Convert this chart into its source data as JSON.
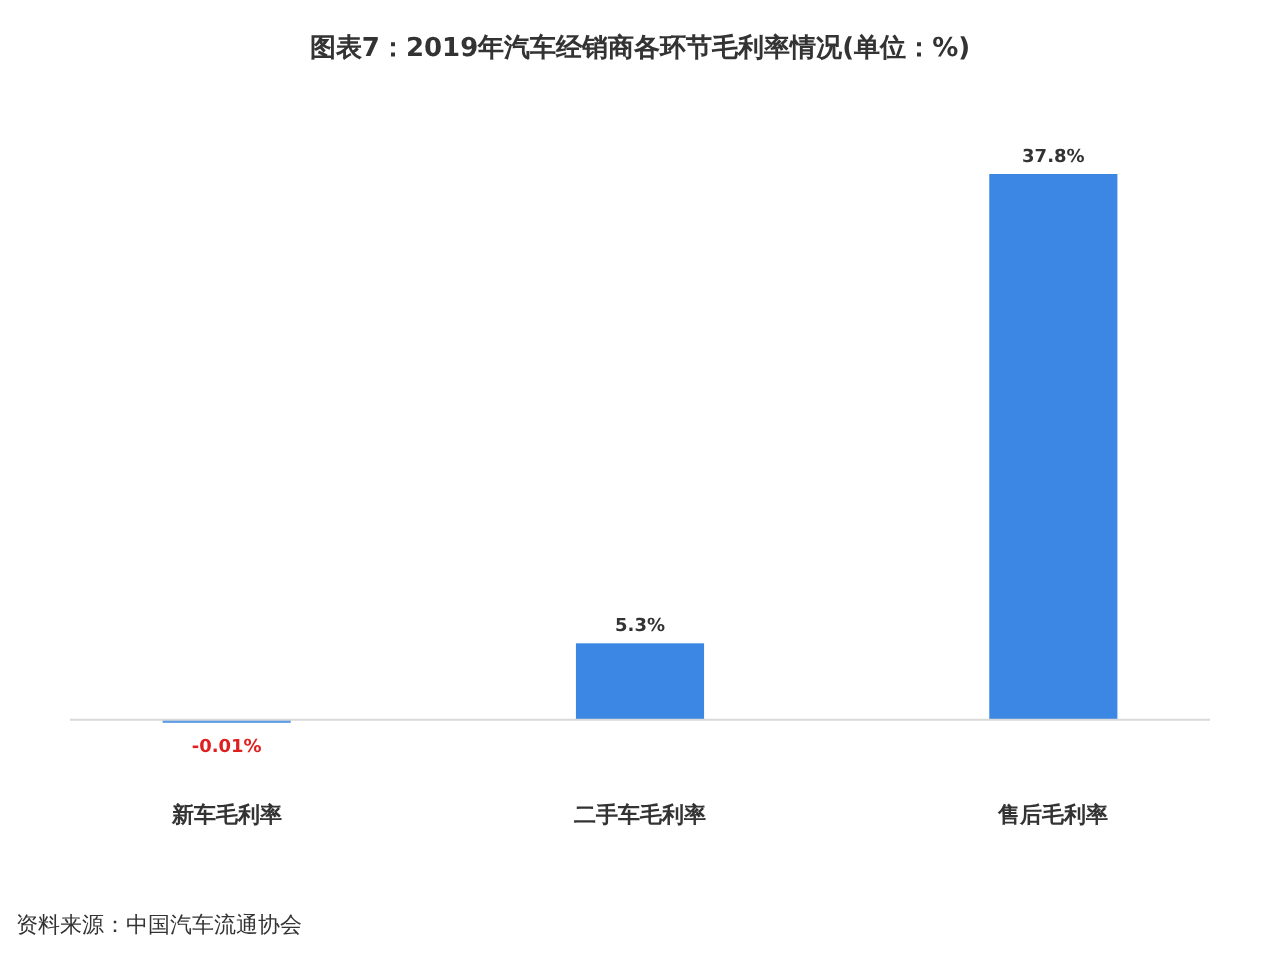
{
  "chart_data": {
    "type": "bar",
    "title": "图表7：2019年汽车经销商各环节毛利率情况(单位：%)",
    "categories": [
      "新车毛利率",
      "二手车毛利率",
      "售后毛利率"
    ],
    "values": [
      -0.01,
      5.3,
      37.8
    ],
    "colors": [
      "#5b9be8",
      "#3d87e4",
      "#3d87e4"
    ],
    "value_labels": [
      "-0.01%",
      "5.3%",
      "37.8%"
    ],
    "annotations": [
      "资料来源：中国汽车流通协会"
    ]
  }
}
